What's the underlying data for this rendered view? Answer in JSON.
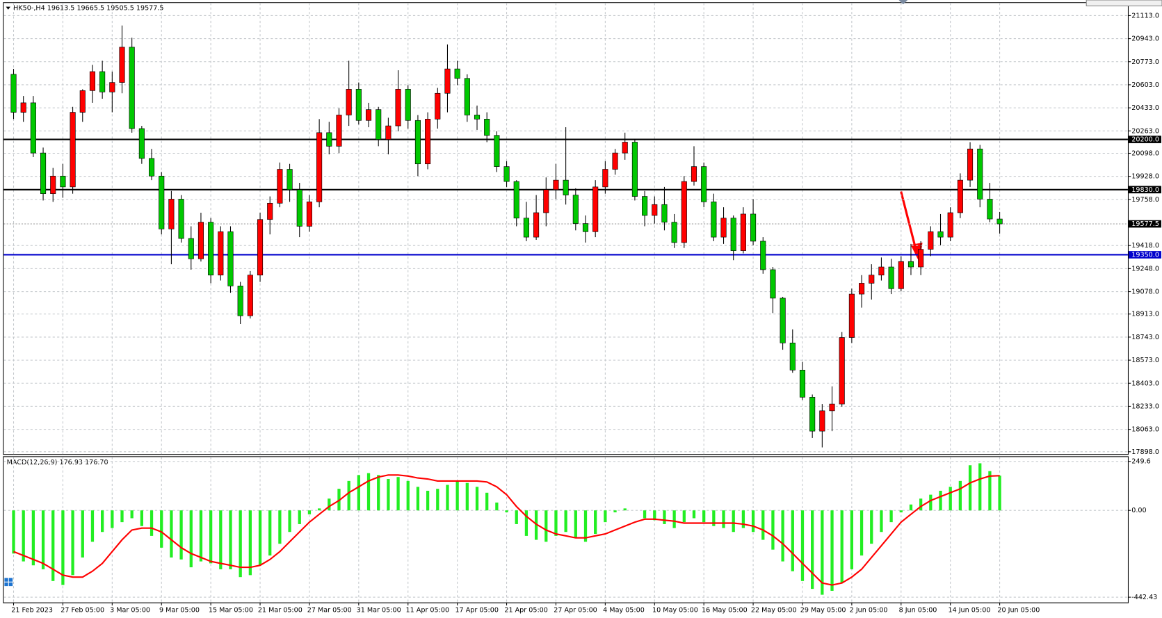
{
  "chart_data": [
    {
      "type": "candlestick",
      "title": "HK50-,H4  19613.5 19665.5 19505.5 19577.5",
      "up_color": "#ff0000",
      "down_color": "#00c800",
      "wick_color": "#000000",
      "grid": true,
      "open": [
        20680,
        20400,
        20470,
        20100,
        19800,
        19930,
        19850,
        20400,
        20560,
        20700,
        20550,
        20620,
        20880,
        20280,
        20060,
        19930,
        19540,
        19760,
        19470,
        19320,
        19590,
        19200,
        19520,
        19120,
        18900,
        19200,
        19610,
        19730,
        19980,
        19830,
        19560,
        19740,
        20250,
        20150,
        20380,
        20570,
        20340,
        20420,
        20200,
        20300,
        20570,
        20340,
        20020,
        20350,
        20540,
        20720,
        20650,
        20380,
        20350,
        20230,
        20000,
        19890,
        19620,
        19480,
        19660,
        19830,
        19900,
        19790,
        19580,
        19520,
        19850,
        19980,
        20100,
        20180,
        19780,
        19640,
        19720,
        19590,
        19440,
        19890,
        20000,
        19740,
        19480,
        19620,
        19380,
        19650,
        19450,
        19240,
        19030,
        18700,
        18500,
        18300,
        18050,
        18200,
        18250,
        18740,
        19060,
        19140,
        19200,
        19260,
        19100,
        19300,
        19260,
        19390,
        19520,
        19480,
        19660,
        19900,
        20130,
        19760,
        19613.5
      ],
      "high": [
        20720,
        20520,
        20520,
        20140,
        19990,
        20020,
        20440,
        20570,
        20750,
        20780,
        20700,
        21040,
        20950,
        20300,
        20130,
        19960,
        19820,
        19790,
        19560,
        19660,
        19620,
        19560,
        19560,
        19150,
        19230,
        19660,
        19780,
        20030,
        20020,
        19880,
        19790,
        20350,
        20330,
        20430,
        20780,
        20620,
        20470,
        20440,
        20360,
        20710,
        20600,
        20380,
        20400,
        20580,
        20900,
        20780,
        20680,
        20450,
        20400,
        20260,
        20040,
        19900,
        19740,
        19790,
        19920,
        20020,
        20290,
        19840,
        19640,
        19900,
        20040,
        20130,
        20250,
        20200,
        19820,
        19780,
        19850,
        19650,
        19930,
        20150,
        20030,
        19800,
        19700,
        19640,
        19700,
        19760,
        19480,
        19260,
        19040,
        18800,
        18560,
        18320,
        18250,
        18380,
        18780,
        19100,
        19200,
        19280,
        19330,
        19320,
        19340,
        19430,
        19450,
        19560,
        19650,
        19700,
        19950,
        20180,
        20160,
        19880,
        19665.5
      ],
      "low": [
        20350,
        20330,
        20070,
        19750,
        19740,
        19770,
        19800,
        20330,
        20470,
        20500,
        20400,
        20540,
        20250,
        20020,
        19900,
        19500,
        19280,
        19440,
        19240,
        19300,
        19140,
        19160,
        19070,
        18840,
        18880,
        19150,
        19500,
        19700,
        19740,
        19480,
        19520,
        19700,
        20090,
        20100,
        20300,
        20310,
        20290,
        20150,
        20090,
        20260,
        20280,
        19930,
        19980,
        20280,
        20400,
        20600,
        20330,
        20270,
        20180,
        19960,
        19850,
        19560,
        19450,
        19460,
        19560,
        19760,
        19720,
        19530,
        19440,
        19480,
        19800,
        19940,
        20050,
        19750,
        19560,
        19580,
        19530,
        19400,
        19400,
        19860,
        19700,
        19450,
        19430,
        19310,
        19360,
        19420,
        19210,
        18920,
        18650,
        18480,
        18280,
        18000,
        17930,
        18050,
        18230,
        18700,
        18960,
        19020,
        19160,
        19060,
        19080,
        19200,
        19200,
        19340,
        19420,
        19450,
        19620,
        19850,
        19700,
        19590,
        19505.5
      ],
      "close": [
        20400,
        20470,
        20100,
        19800,
        19930,
        19850,
        20400,
        20560,
        20700,
        20550,
        20620,
        20880,
        20280,
        20060,
        19930,
        19540,
        19760,
        19470,
        19320,
        19590,
        19200,
        19520,
        19120,
        18900,
        19200,
        19610,
        19730,
        19980,
        19830,
        19560,
        19740,
        20250,
        20150,
        20380,
        20570,
        20340,
        20420,
        20200,
        20300,
        20570,
        20340,
        20020,
        20350,
        20540,
        20720,
        20650,
        20380,
        20350,
        20230,
        20000,
        19890,
        19620,
        19480,
        19660,
        19830,
        19900,
        19790,
        19580,
        19520,
        19850,
        19980,
        20100,
        20180,
        19780,
        19640,
        19720,
        19590,
        19440,
        19890,
        20000,
        19740,
        19480,
        19620,
        19380,
        19650,
        19450,
        19240,
        19030,
        18700,
        18500,
        18300,
        18050,
        18200,
        18250,
        18740,
        19060,
        19140,
        19200,
        19260,
        19100,
        19300,
        19260,
        19390,
        19520,
        19480,
        19660,
        19900,
        20130,
        19760,
        19613.5,
        19577.5
      ],
      "xlim": [
        -1,
        113
      ],
      "xticks": [
        {
          "value": 0,
          "label": "21 Feb 2023"
        },
        {
          "value": 5,
          "label": "27 Feb 05:00"
        },
        {
          "value": 10,
          "label": "3 Mar 05:00"
        },
        {
          "value": 15,
          "label": "9 Mar 05:00"
        },
        {
          "value": 20,
          "label": "15 Mar 05:00"
        },
        {
          "value": 25,
          "label": "21 Mar 05:00"
        },
        {
          "value": 30,
          "label": "27 Mar 05:00"
        },
        {
          "value": 35,
          "label": "31 Mar 05:00"
        },
        {
          "value": 40,
          "label": "11 Apr 05:00"
        },
        {
          "value": 45,
          "label": "17 Apr 05:00"
        },
        {
          "value": 50,
          "label": "21 Apr 05:00"
        },
        {
          "value": 55,
          "label": "27 Apr 05:00"
        },
        {
          "value": 60,
          "label": "4 May 05:00"
        },
        {
          "value": 65,
          "label": "10 May 05:00"
        },
        {
          "value": 70,
          "label": "16 May 05:00"
        },
        {
          "value": 75,
          "label": "22 May 05:00"
        },
        {
          "value": 80,
          "label": "29 May 05:00"
        },
        {
          "value": 85,
          "label": "2 Jun 05:00"
        },
        {
          "value": 90,
          "label": "8 Jun 05:00"
        },
        {
          "value": 95,
          "label": "14 Jun 05:00"
        },
        {
          "value": 100,
          "label": "20 Jun 05:00"
        }
      ],
      "ylim": [
        17881,
        21206
      ],
      "yticks": [
        {
          "value": 21113,
          "label": "21113.0"
        },
        {
          "value": 20943,
          "label": "20943.0"
        },
        {
          "value": 20773,
          "label": "20773.0"
        },
        {
          "value": 20603,
          "label": "20603.0"
        },
        {
          "value": 20433,
          "label": "20433.0"
        },
        {
          "value": 20263,
          "label": "20263.0"
        },
        {
          "value": 20098,
          "label": "20098.0"
        },
        {
          "value": 19928,
          "label": "19928.0"
        },
        {
          "value": 19758,
          "label": "19758.0"
        },
        {
          "value": 19418,
          "label": "19418.0"
        },
        {
          "value": 19248,
          "label": "19248.0"
        },
        {
          "value": 19078,
          "label": "19078.0"
        },
        {
          "value": 18913,
          "label": "18913.0"
        },
        {
          "value": 18743,
          "label": "18743.0"
        },
        {
          "value": 18573,
          "label": "18573.0"
        },
        {
          "value": 18403,
          "label": "18403.0"
        },
        {
          "value": 18233,
          "label": "18233.0"
        },
        {
          "value": 18063,
          "label": "18063.0"
        },
        {
          "value": 17898,
          "label": "17898.0"
        }
      ],
      "levels": [
        {
          "value": 20200,
          "label": "20200.0",
          "color": "#000000"
        },
        {
          "value": 19830,
          "label": "19830.0",
          "color": "#000000"
        },
        {
          "value": 19350,
          "label": "19350.0",
          "color": "#0000cc"
        }
      ],
      "current_price": {
        "value": 19577.5,
        "label": "19577.5",
        "color": "#a0a0a0"
      }
    },
    {
      "type": "macd",
      "title": "MACD(12,26,9) 176.93 176.70",
      "grid": true,
      "series": [
        {
          "name": "MACD",
          "kind": "histogram",
          "color": "#22ee22",
          "values": [
            -220,
            -260,
            -280,
            -300,
            -360,
            -380,
            -330,
            -240,
            -160,
            -110,
            -90,
            -60,
            -40,
            -80,
            -130,
            -190,
            -240,
            -250,
            -290,
            -260,
            -270,
            -300,
            -300,
            -340,
            -330,
            -280,
            -230,
            -170,
            -110,
            -70,
            -20,
            10,
            60,
            110,
            150,
            180,
            190,
            180,
            160,
            170,
            150,
            120,
            100,
            110,
            130,
            150,
            140,
            120,
            90,
            40,
            -10,
            -70,
            -130,
            -150,
            -160,
            -130,
            -110,
            -140,
            -160,
            -120,
            -60,
            -10,
            10,
            0,
            -40,
            -50,
            -70,
            -90,
            -60,
            -40,
            -60,
            -80,
            -90,
            -110,
            -90,
            -110,
            -150,
            -200,
            -260,
            -310,
            -360,
            -400,
            -430,
            -410,
            -370,
            -300,
            -230,
            -170,
            -110,
            -60,
            -10,
            30,
            60,
            80,
            100,
            120,
            150,
            230,
            240,
            200,
            176.93
          ]
        },
        {
          "name": "Signal",
          "kind": "line",
          "color": "#ff0000",
          "values": [
            -210,
            -230,
            -250,
            -270,
            -300,
            -330,
            -340,
            -340,
            -310,
            -270,
            -210,
            -150,
            -100,
            -90,
            -90,
            -110,
            -150,
            -190,
            -220,
            -240,
            -260,
            -270,
            -280,
            -290,
            -290,
            -280,
            -250,
            -210,
            -160,
            -110,
            -60,
            -20,
            20,
            50,
            90,
            120,
            150,
            170,
            180,
            180,
            175,
            165,
            160,
            150,
            150,
            150,
            150,
            150,
            145,
            120,
            80,
            20,
            -30,
            -70,
            -100,
            -120,
            -130,
            -140,
            -140,
            -130,
            -120,
            -100,
            -80,
            -60,
            -45,
            -45,
            -50,
            -55,
            -65,
            -65,
            -65,
            -65,
            -65,
            -65,
            -70,
            -80,
            -100,
            -130,
            -170,
            -220,
            -270,
            -320,
            -370,
            -380,
            -370,
            -340,
            -300,
            -240,
            -180,
            -120,
            -60,
            -20,
            20,
            50,
            70,
            90,
            110,
            140,
            160,
            175,
            176.7
          ]
        }
      ],
      "ylim": [
        -469,
        272
      ],
      "yticks": [
        249.6,
        {
          "value": 0,
          "label": "0.00"
        },
        -442.43
      ]
    }
  ]
}
